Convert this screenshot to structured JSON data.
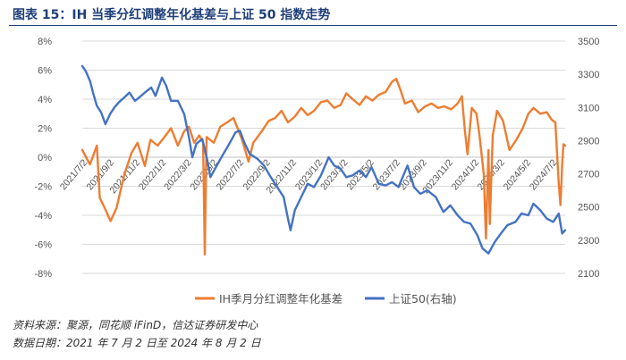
{
  "figure": {
    "title": "图表 15：IH 当季分红调整年化基差与上证 50 指数走势",
    "source_note": "资料来源：聚源，同花顺 iFinD，信达证券研发中心",
    "date_note": "数据日期：2021 年 7 月 2 日至 2024 年 8 月 2 日"
  },
  "colors": {
    "series_basis": "#ED7D31",
    "series_index": "#4472C4",
    "title": "#1F3F7A",
    "grid": "#D9D9D9"
  },
  "chart_data": {
    "type": "line",
    "title": "IH 当季分红调整年化基差与上证 50 指数走势",
    "x_start": "2021-07-02",
    "x_end": "2024-08-02",
    "x_ticks": [
      "2021/7/2",
      "2021/9/2",
      "2021/11/2",
      "2022/1/2",
      "2022/3/2",
      "2022/5/2",
      "2022/7/2",
      "2022/9/2",
      "2022/11/2",
      "2023/1/2",
      "2023/3/2",
      "2023/5/2",
      "2023/7/2",
      "2023/9/2",
      "2023/11/2",
      "2024/1/2",
      "2024/3/2",
      "2024/5/2",
      "2024/7/2"
    ],
    "y_left": {
      "min": -8,
      "max": 8,
      "ticks": [
        "-8%",
        "-6%",
        "-4%",
        "-2%",
        "0%",
        "2%",
        "4%",
        "6%",
        "8%"
      ]
    },
    "y_right": {
      "min": 2100,
      "max": 3500,
      "ticks": [
        "2100",
        "2300",
        "2500",
        "2700",
        "2900",
        "3100",
        "3300",
        "3500"
      ]
    },
    "series": [
      {
        "name": "IH季月分红调整年化基差",
        "axis": "left",
        "points": [
          [
            "2021-07-02",
            0.5
          ],
          [
            "2021-07-20",
            -0.5
          ],
          [
            "2021-08-05",
            0.8
          ],
          [
            "2021-08-12",
            -2.8
          ],
          [
            "2021-08-25",
            -3.6
          ],
          [
            "2021-09-06",
            -4.4
          ],
          [
            "2021-09-20",
            -3.5
          ],
          [
            "2021-10-08",
            -1.2
          ],
          [
            "2021-10-25",
            0.3
          ],
          [
            "2021-11-08",
            1.0
          ],
          [
            "2021-11-25",
            -0.6
          ],
          [
            "2021-12-08",
            1.2
          ],
          [
            "2021-12-25",
            0.8
          ],
          [
            "2022-01-10",
            1.4
          ],
          [
            "2022-01-25",
            2.0
          ],
          [
            "2022-02-10",
            0.8
          ],
          [
            "2022-02-25",
            1.8
          ],
          [
            "2022-03-08",
            2.1
          ],
          [
            "2022-03-20",
            1.0
          ],
          [
            "2022-04-01",
            1.5
          ],
          [
            "2022-04-10",
            1.0
          ],
          [
            "2022-04-14",
            -6.7
          ],
          [
            "2022-04-18",
            1.4
          ],
          [
            "2022-05-05",
            1.0
          ],
          [
            "2022-05-20",
            2.1
          ],
          [
            "2022-06-05",
            2.4
          ],
          [
            "2022-06-20",
            2.7
          ],
          [
            "2022-07-10",
            1.2
          ],
          [
            "2022-07-25",
            -0.3
          ],
          [
            "2022-08-05",
            1.0
          ],
          [
            "2022-08-25",
            1.8
          ],
          [
            "2022-09-10",
            2.5
          ],
          [
            "2022-09-25",
            2.7
          ],
          [
            "2022-10-10",
            3.2
          ],
          [
            "2022-10-25",
            2.4
          ],
          [
            "2022-11-10",
            2.8
          ],
          [
            "2022-11-25",
            3.4
          ],
          [
            "2022-12-10",
            2.9
          ],
          [
            "2022-12-25",
            3.2
          ],
          [
            "2023-01-10",
            3.8
          ],
          [
            "2023-01-25",
            3.9
          ],
          [
            "2023-02-10",
            3.4
          ],
          [
            "2023-02-25",
            3.6
          ],
          [
            "2023-03-10",
            4.4
          ],
          [
            "2023-03-25",
            4.0
          ],
          [
            "2023-04-10",
            3.6
          ],
          [
            "2023-04-25",
            4.2
          ],
          [
            "2023-05-10",
            3.9
          ],
          [
            "2023-05-25",
            4.3
          ],
          [
            "2023-06-10",
            4.5
          ],
          [
            "2023-06-25",
            5.2
          ],
          [
            "2023-07-05",
            5.4
          ],
          [
            "2023-07-15",
            4.6
          ],
          [
            "2023-07-25",
            3.7
          ],
          [
            "2023-08-10",
            3.9
          ],
          [
            "2023-08-25",
            3.1
          ],
          [
            "2023-09-10",
            3.5
          ],
          [
            "2023-09-25",
            3.7
          ],
          [
            "2023-10-10",
            3.4
          ],
          [
            "2023-10-25",
            3.5
          ],
          [
            "2023-11-10",
            3.3
          ],
          [
            "2023-11-25",
            3.7
          ],
          [
            "2023-12-05",
            4.2
          ],
          [
            "2023-12-12",
            1.8
          ],
          [
            "2023-12-18",
            0.2
          ],
          [
            "2023-12-28",
            3.4
          ],
          [
            "2024-01-08",
            3.0
          ],
          [
            "2024-01-15",
            1.5
          ],
          [
            "2024-01-25",
            -1.2
          ],
          [
            "2024-01-30",
            -5.6
          ],
          [
            "2024-02-05",
            0.5
          ],
          [
            "2024-02-08",
            -4.6
          ],
          [
            "2024-02-15",
            1.5
          ],
          [
            "2024-02-25",
            3.2
          ],
          [
            "2024-03-10",
            2.5
          ],
          [
            "2024-03-25",
            0.5
          ],
          [
            "2024-04-10",
            1.2
          ],
          [
            "2024-04-25",
            2.0
          ],
          [
            "2024-05-08",
            3.0
          ],
          [
            "2024-05-20",
            3.4
          ],
          [
            "2024-06-05",
            3.0
          ],
          [
            "2024-06-20",
            3.1
          ],
          [
            "2024-07-01",
            2.6
          ],
          [
            "2024-07-10",
            2.4
          ],
          [
            "2024-07-18",
            -1.8
          ],
          [
            "2024-07-22",
            -3.3
          ],
          [
            "2024-07-26",
            -0.5
          ],
          [
            "2024-07-29",
            0.9
          ],
          [
            "2024-08-02",
            0.8
          ]
        ]
      },
      {
        "name": "上证50(右轴)",
        "axis": "right",
        "points": [
          [
            "2021-07-02",
            3350
          ],
          [
            "2021-07-10",
            3320
          ],
          [
            "2021-07-20",
            3260
          ],
          [
            "2021-07-28",
            3180
          ],
          [
            "2021-08-05",
            3110
          ],
          [
            "2021-08-15",
            3070
          ],
          [
            "2021-08-25",
            3000
          ],
          [
            "2021-09-05",
            3060
          ],
          [
            "2021-09-15",
            3100
          ],
          [
            "2021-09-25",
            3130
          ],
          [
            "2021-10-08",
            3160
          ],
          [
            "2021-10-20",
            3190
          ],
          [
            "2021-11-02",
            3140
          ],
          [
            "2021-11-12",
            3160
          ],
          [
            "2021-11-25",
            3190
          ],
          [
            "2021-12-10",
            3220
          ],
          [
            "2021-12-20",
            3170
          ],
          [
            "2022-01-04",
            3280
          ],
          [
            "2022-01-14",
            3230
          ],
          [
            "2022-01-25",
            3140
          ],
          [
            "2022-02-10",
            3140
          ],
          [
            "2022-02-25",
            3060
          ],
          [
            "2022-03-08",
            2920
          ],
          [
            "2022-03-16",
            2800
          ],
          [
            "2022-03-25",
            2880
          ],
          [
            "2022-04-08",
            2910
          ],
          [
            "2022-04-20",
            2780
          ],
          [
            "2022-04-27",
            2680
          ],
          [
            "2022-05-10",
            2740
          ],
          [
            "2022-05-25",
            2810
          ],
          [
            "2022-06-10",
            2880
          ],
          [
            "2022-06-25",
            2950
          ],
          [
            "2022-07-05",
            2960
          ],
          [
            "2022-07-15",
            2890
          ],
          [
            "2022-07-28",
            2820
          ],
          [
            "2022-08-15",
            2790
          ],
          [
            "2022-08-30",
            2750
          ],
          [
            "2022-09-15",
            2680
          ],
          [
            "2022-09-30",
            2620
          ],
          [
            "2022-10-15",
            2560
          ],
          [
            "2022-10-25",
            2430
          ],
          [
            "2022-10-31",
            2360
          ],
          [
            "2022-11-10",
            2480
          ],
          [
            "2022-11-25",
            2560
          ],
          [
            "2022-12-10",
            2640
          ],
          [
            "2022-12-25",
            2620
          ],
          [
            "2023-01-10",
            2690
          ],
          [
            "2023-01-28",
            2800
          ],
          [
            "2023-02-10",
            2750
          ],
          [
            "2023-02-25",
            2730
          ],
          [
            "2023-03-10",
            2680
          ],
          [
            "2023-03-25",
            2690
          ],
          [
            "2023-04-10",
            2720
          ],
          [
            "2023-04-25",
            2680
          ],
          [
            "2023-05-08",
            2740
          ],
          [
            "2023-05-25",
            2640
          ],
          [
            "2023-06-10",
            2630
          ],
          [
            "2023-06-25",
            2650
          ],
          [
            "2023-07-10",
            2620
          ],
          [
            "2023-07-31",
            2750
          ],
          [
            "2023-08-15",
            2620
          ],
          [
            "2023-08-30",
            2580
          ],
          [
            "2023-09-15",
            2600
          ],
          [
            "2023-10-05",
            2560
          ],
          [
            "2023-10-23",
            2470
          ],
          [
            "2023-11-08",
            2510
          ],
          [
            "2023-11-25",
            2450
          ],
          [
            "2023-12-10",
            2410
          ],
          [
            "2023-12-25",
            2400
          ],
          [
            "2024-01-10",
            2330
          ],
          [
            "2024-01-22",
            2250
          ],
          [
            "2024-02-05",
            2220
          ],
          [
            "2024-02-20",
            2290
          ],
          [
            "2024-03-05",
            2340
          ],
          [
            "2024-03-20",
            2390
          ],
          [
            "2024-04-08",
            2410
          ],
          [
            "2024-04-22",
            2460
          ],
          [
            "2024-05-08",
            2450
          ],
          [
            "2024-05-20",
            2520
          ],
          [
            "2024-06-05",
            2480
          ],
          [
            "2024-06-20",
            2430
          ],
          [
            "2024-07-05",
            2410
          ],
          [
            "2024-07-18",
            2460
          ],
          [
            "2024-07-26",
            2340
          ],
          [
            "2024-08-02",
            2360
          ]
        ]
      }
    ],
    "legend_position": "bottom"
  }
}
